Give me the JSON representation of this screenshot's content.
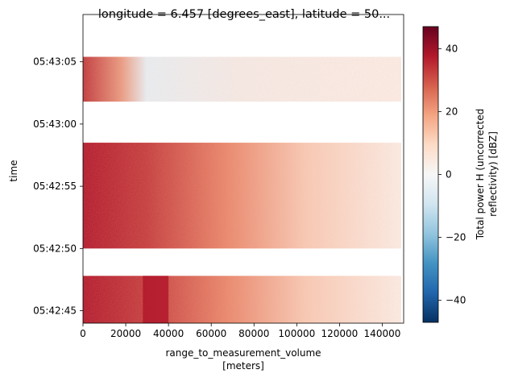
{
  "chart_data": {
    "type": "heatmap",
    "title": "longitude = 6.457 [degrees_east], latitude = 50...",
    "xlabel": "range_to_measurement_volume",
    "xlabel_units": "[meters]",
    "ylabel": "time",
    "x_range": [
      0,
      150000
    ],
    "x_ticks": [
      0,
      20000,
      40000,
      60000,
      80000,
      100000,
      120000,
      140000
    ],
    "x_tick_labels": [
      "0",
      "20000",
      "40000",
      "60000",
      "80000",
      "100000",
      "120000",
      "140000"
    ],
    "y_range": [
      "05:42:44.0",
      "05:43:08.8"
    ],
    "y_tick_labels": [
      "05:42:45",
      "05:42:50",
      "05:42:55",
      "05:43:00",
      "05:43:05"
    ],
    "y_tick_seconds": [
      45,
      50,
      55,
      60,
      65
    ],
    "y_range_seconds": [
      44.0,
      68.8
    ],
    "data_bands_seconds": [
      [
        44.0,
        47.8
      ],
      [
        50.0,
        58.5
      ],
      [
        61.8,
        65.4
      ]
    ],
    "colorbar": {
      "label_line1": "Total power H (uncorrected",
      "label_line2": "reflectivity) [dBZ]",
      "range": [
        -47,
        47
      ],
      "ticks": [
        -40,
        -20,
        0,
        20,
        40
      ],
      "tick_labels": [
        "−40",
        "−20",
        "0",
        "20",
        "40"
      ],
      "colormap": "RdBu_r",
      "colors": [
        "#053061",
        "#2166ac",
        "#4393c3",
        "#92c5de",
        "#d1e5f0",
        "#f7f7f7",
        "#fddbc7",
        "#f4a582",
        "#d6604d",
        "#b2182b",
        "#67001f"
      ]
    },
    "grid": false
  }
}
